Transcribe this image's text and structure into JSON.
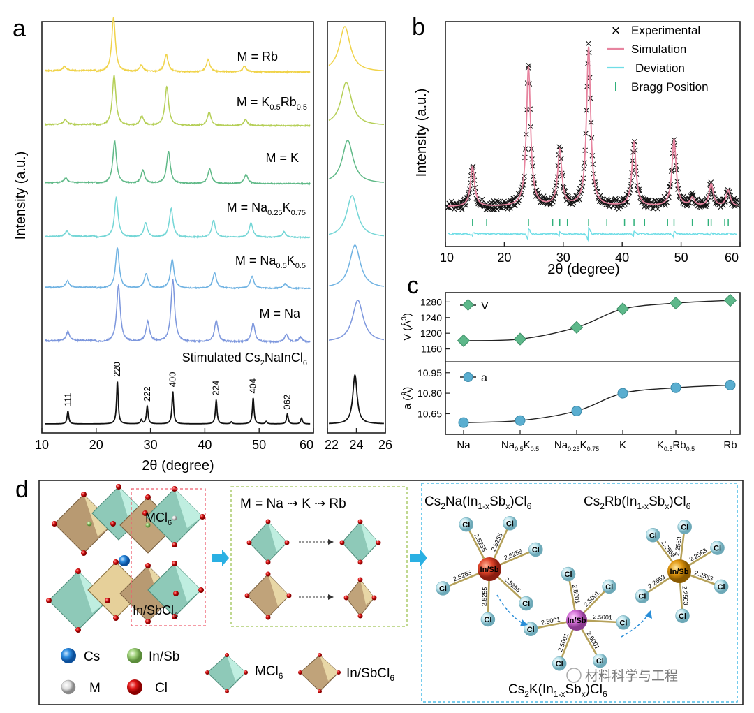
{
  "panels": {
    "a": "a",
    "b": "b",
    "c": "c",
    "d": "d"
  },
  "panel_a": {
    "ylabel": "Intensity (a.u.)",
    "xlabel": "2θ (degree)",
    "xticks_main": [
      "10",
      "20",
      "30",
      "40",
      "50",
      "60"
    ],
    "xticks_zoom": [
      "22",
      "24",
      "26"
    ],
    "stim_label": "Stimulated Cs2NaInCl6",
    "peak_labels": [
      "111",
      "220",
      "222",
      "400",
      "224",
      "404",
      "062"
    ]
  },
  "panel_b": {
    "ylabel": "Intensity (a.u.)",
    "xlabel": "2θ (degree)",
    "xticks": [
      "10",
      "20",
      "30",
      "40",
      "50",
      "60"
    ],
    "legend": [
      "Experimental",
      "Simulation",
      "Deviation",
      "Bragg Position"
    ]
  },
  "panel_c": {
    "v_label": "V (Å³)",
    "a_label": "a (Å)",
    "v_legend": "V",
    "a_legend": "a",
    "v_ticks": [
      "1280",
      "1240",
      "1200",
      "1160"
    ],
    "a_ticks": [
      "10.95",
      "10.80",
      "10.65"
    ]
  },
  "panel_d": {
    "box1_label_top": "MCl6",
    "box1_label_bottom": "In/SbCl6",
    "box2_title": "M = Na ⇢ K ⇢ Rb",
    "title_na": "Cs2Na(In1-xSbx)Cl6",
    "title_rb": "Cs2Rb(In1-xSbx)Cl6",
    "title_k": "Cs2K(In1-xSbx)Cl6",
    "legend": [
      "Cs",
      "In/Sb",
      "M",
      "Cl",
      "MCl6",
      "In/SbCl6"
    ],
    "bond_na": "2.5255",
    "bond_k": "2.5001",
    "bond_rb": "2.2563",
    "center_label": "In/Sb",
    "cl_label": "Cl",
    "watermark": "材料科学与工程"
  },
  "chart_data": [
    {
      "type": "line",
      "title": "a",
      "xlabel": "2θ (degree)",
      "ylabel": "Intensity (a.u.)",
      "xlim": [
        10,
        60
      ],
      "series": [
        {
          "name": "M = Rb",
          "color": "#f0d34a",
          "peaks": [
            [
              14.2,
              0.08
            ],
            [
              23.2,
              1.0
            ],
            [
              28.3,
              0.12
            ],
            [
              32.9,
              0.32
            ],
            [
              40.6,
              0.22
            ],
            [
              47.3,
              0.1
            ]
          ]
        },
        {
          "name": "M = K0.5Rb0.5",
          "color": "#b5cf57",
          "peaks": [
            [
              14.3,
              0.1
            ],
            [
              23.3,
              1.0
            ],
            [
              28.4,
              0.18
            ],
            [
              33.0,
              0.78
            ],
            [
              40.8,
              0.26
            ],
            [
              47.5,
              0.12
            ]
          ]
        },
        {
          "name": "M = K",
          "color": "#5fb987",
          "peaks": [
            [
              14.4,
              0.1
            ],
            [
              23.4,
              0.92
            ],
            [
              28.6,
              0.28
            ],
            [
              33.3,
              0.7
            ],
            [
              40.9,
              0.32
            ],
            [
              47.6,
              0.2
            ]
          ]
        },
        {
          "name": "M = Na0.25K0.75",
          "color": "#74d6d6",
          "peaks": [
            [
              14.6,
              0.12
            ],
            [
              23.7,
              0.88
            ],
            [
              29.1,
              0.32
            ],
            [
              33.8,
              0.64
            ],
            [
              41.6,
              0.38
            ],
            [
              48.5,
              0.32
            ],
            [
              54.6,
              0.12
            ]
          ]
        },
        {
          "name": "M = Na0.5K0.5",
          "color": "#6fb2e2",
          "peaks": [
            [
              14.7,
              0.14
            ],
            [
              23.9,
              0.88
            ],
            [
              29.2,
              0.32
            ],
            [
              34.0,
              0.62
            ],
            [
              41.8,
              0.34
            ],
            [
              48.7,
              0.26
            ],
            [
              54.8,
              0.1
            ]
          ]
        },
        {
          "name": "M = Na",
          "color": "#7d97dd",
          "peaks": [
            [
              14.8,
              0.14
            ],
            [
              24.1,
              0.9
            ],
            [
              29.5,
              0.32
            ],
            [
              34.1,
              1.0
            ],
            [
              42.1,
              0.34
            ],
            [
              48.9,
              0.3
            ],
            [
              55.0,
              0.12
            ],
            [
              57.6,
              0.08
            ]
          ]
        },
        {
          "name": "Stimulated Cs2NaInCl6",
          "color": "#111111",
          "peaks": [
            [
              14.8,
              0.26
            ],
            [
              23.9,
              0.85
            ],
            [
              28.3,
              0.08
            ],
            [
              29.4,
              0.36
            ],
            [
              34.1,
              0.65
            ],
            [
              42.1,
              0.48
            ],
            [
              44.9,
              0.04
            ],
            [
              48.9,
              0.52
            ],
            [
              51.3,
              0.05
            ],
            [
              55.2,
              0.2
            ],
            [
              57.8,
              0.12
            ]
          ]
        }
      ],
      "annotations": [
        "111",
        "220",
        "222",
        "400",
        "224",
        "404",
        "062"
      ]
    },
    {
      "type": "line",
      "title": "a (zoom)",
      "xlim": [
        22,
        26
      ],
      "xticks": [
        22,
        24,
        26
      ],
      "series": [
        {
          "name": "M = Rb",
          "peak": 23.2
        },
        {
          "name": "M = K0.5Rb0.5",
          "peak": 23.3
        },
        {
          "name": "M = K",
          "peak": 23.4
        },
        {
          "name": "M = Na0.25K0.75",
          "peak": 23.7
        },
        {
          "name": "M = Na0.5K0.5",
          "peak": 23.9
        },
        {
          "name": "M = Na",
          "peak": 24.1
        },
        {
          "name": "Stimulated Cs2NaInCl6",
          "peak": 23.9
        }
      ]
    },
    {
      "type": "scatter",
      "title": "b",
      "xlabel": "2θ (degree)",
      "ylabel": "Intensity (a.u.)",
      "xlim": [
        10,
        60
      ],
      "peaks": [
        [
          14.6,
          0.25
        ],
        [
          24.1,
          0.88
        ],
        [
          29.4,
          0.35
        ],
        [
          34.3,
          1.0
        ],
        [
          42.0,
          0.4
        ],
        [
          48.8,
          0.42
        ],
        [
          51.9,
          0.05
        ],
        [
          55.1,
          0.14
        ],
        [
          58.0,
          0.1
        ]
      ],
      "bragg_positions": [
        14.6,
        17.0,
        24.1,
        28.2,
        29.4,
        30.7,
        34.3,
        37.4,
        40.4,
        42.0,
        43.8,
        47.7,
        48.8,
        51.9,
        54.6,
        55.1,
        57.4,
        58.0
      ],
      "legend": [
        "Experimental",
        "Simulation",
        "Deviation",
        "Bragg Position"
      ]
    },
    {
      "type": "line",
      "title": "c",
      "categories": [
        "Na",
        "Na0.5K0.5",
        "Na0.25K0.75",
        "K",
        "K0.5Rb0.5",
        "Rb"
      ],
      "series": [
        {
          "name": "V",
          "unit": "Å³",
          "values": [
            1181,
            1185,
            1215,
            1262,
            1277,
            1284
          ],
          "ylim": [
            1145,
            1295
          ],
          "color": "#5db88a"
        },
        {
          "name": "a",
          "unit": "Å",
          "values": [
            10.585,
            10.6,
            10.67,
            10.8,
            10.84,
            10.86
          ],
          "ylim": [
            10.55,
            11.0
          ],
          "color": "#5aaed0"
        }
      ]
    }
  ]
}
